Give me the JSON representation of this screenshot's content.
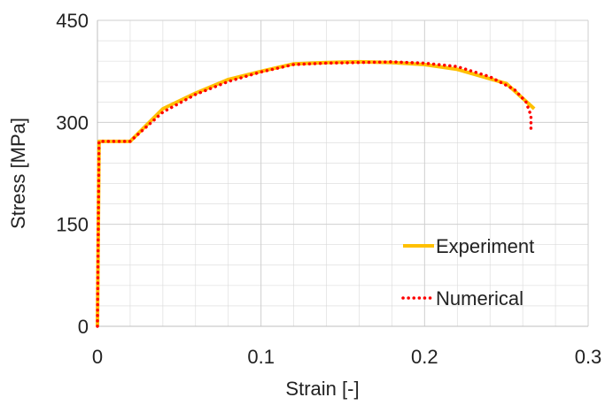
{
  "chart_data": {
    "type": "line",
    "xlabel": "Strain [-]",
    "ylabel": "Stress [MPa]",
    "xlim": [
      0,
      0.3
    ],
    "ylim": [
      0,
      450
    ],
    "x_ticks": [
      0,
      0.1,
      0.2,
      0.3
    ],
    "x_tick_labels": [
      "0",
      "0.1",
      "0.2",
      "0.3"
    ],
    "y_ticks": [
      0,
      150,
      300,
      450
    ],
    "y_tick_labels": [
      "0",
      "150",
      "300",
      "450"
    ],
    "grid": {
      "major": true,
      "minor": true,
      "color": "#d9d9d9"
    },
    "legend": {
      "placement": "bottom-right"
    },
    "series": [
      {
        "name": "Experiment",
        "color": "#ffc000",
        "style": "solid",
        "x": [
          0,
          0.001,
          0.02,
          0.04,
          0.06,
          0.08,
          0.1,
          0.12,
          0.14,
          0.16,
          0.18,
          0.2,
          0.22,
          0.25,
          0.267
        ],
        "y": [
          0,
          272,
          272,
          320,
          343,
          363,
          375,
          386,
          388,
          389,
          388,
          385,
          378,
          357,
          320
        ]
      },
      {
        "name": "Numerical",
        "color": "#ff0000",
        "style": "dotted",
        "x": [
          0,
          0.001,
          0.02,
          0.04,
          0.06,
          0.08,
          0.1,
          0.12,
          0.14,
          0.16,
          0.18,
          0.2,
          0.22,
          0.24,
          0.255,
          0.262,
          0.265,
          0.265
        ],
        "y": [
          0,
          272,
          272,
          315,
          341,
          360,
          374,
          385,
          387,
          388,
          389,
          387,
          382,
          367,
          348,
          330,
          310,
          290
        ]
      }
    ]
  }
}
